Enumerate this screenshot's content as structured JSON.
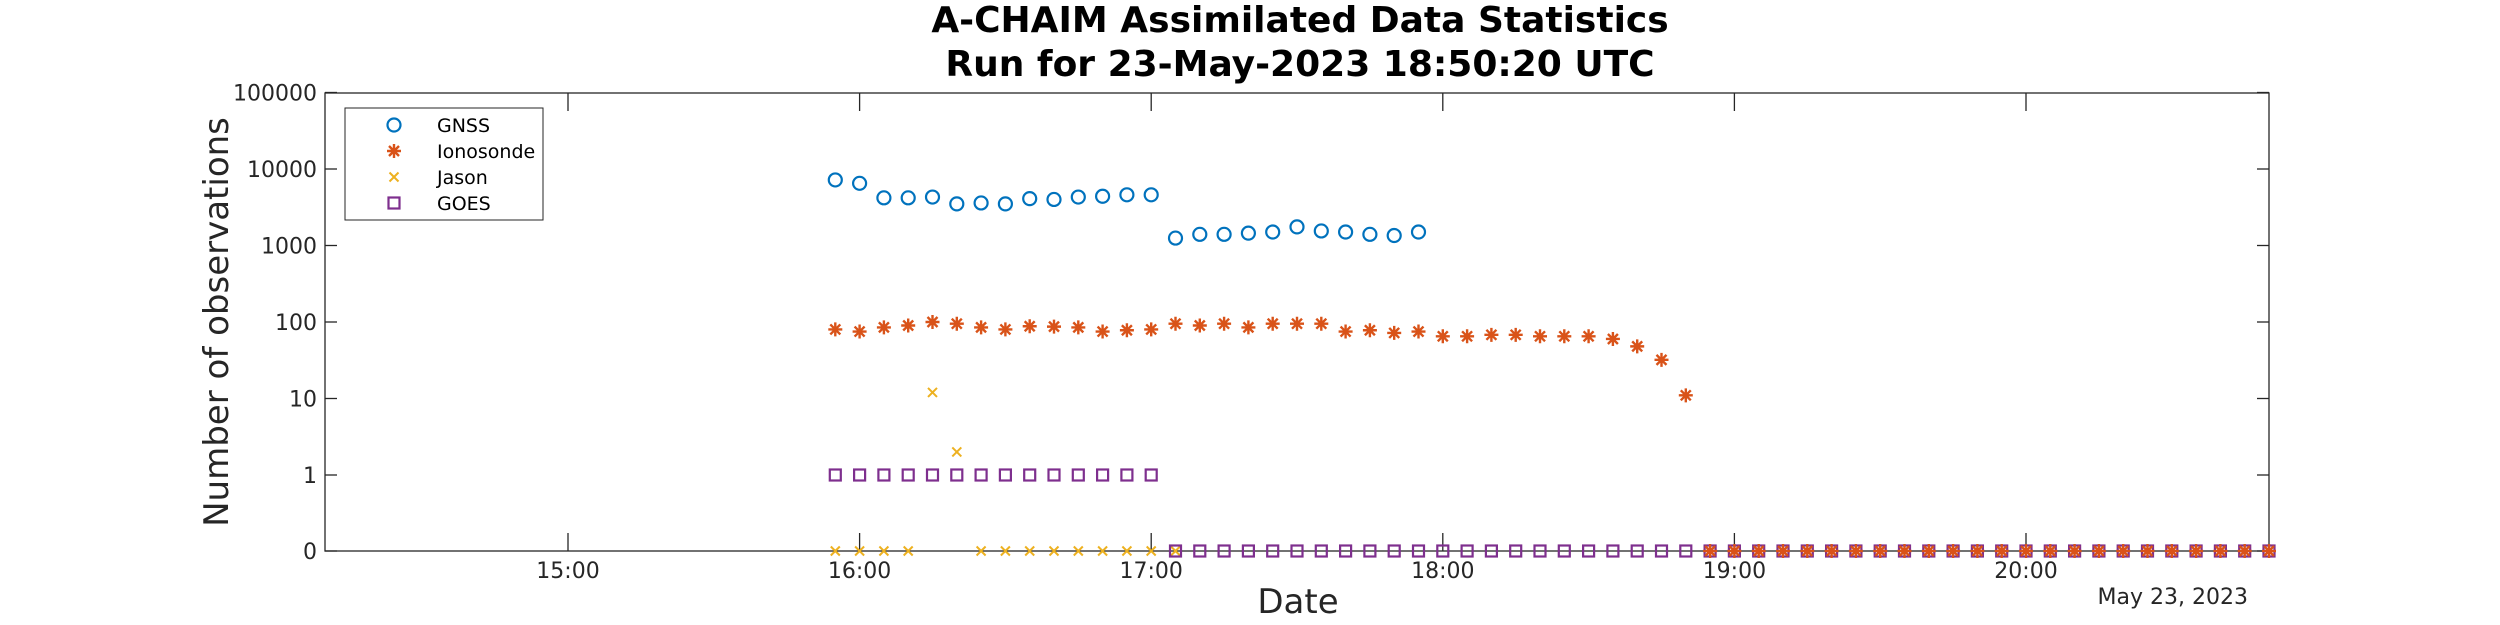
{
  "chart_data": {
    "type": "scatter",
    "title": [
      "A-CHAIM Assimilated Data Statistics",
      "Run for 23-May-2023 18:50:20 UTC"
    ],
    "xlabel": "Date",
    "ylabel": "Number of observations",
    "x_secondary_label": "May 23, 2023",
    "y_scale": "log (0 plotted at bottom)",
    "ylim": [
      0,
      100000
    ],
    "xlim": [
      "14:10",
      "20:50"
    ],
    "y_ticks": [
      "0",
      "1",
      "10",
      "100",
      "1000",
      "10000",
      "100000"
    ],
    "x_ticks": [
      "15:00",
      "16:00",
      "17:00",
      "18:00",
      "19:00",
      "20:00"
    ],
    "legend_position": "top-left",
    "grid": false,
    "series": [
      {
        "name": "GNSS",
        "marker": "circle",
        "color": "#0072BD",
        "x": [
          "15:55",
          "16:00",
          "16:05",
          "16:10",
          "16:15",
          "16:20",
          "16:25",
          "16:30",
          "16:35",
          "16:40",
          "16:45",
          "16:50",
          "16:55",
          "17:00",
          "17:05",
          "17:10",
          "17:15",
          "17:20",
          "17:25",
          "17:30",
          "17:35",
          "17:40",
          "17:45",
          "17:50",
          "17:55"
        ],
        "y": [
          7200,
          6500,
          4200,
          4200,
          4300,
          3500,
          3600,
          3500,
          4100,
          4000,
          4300,
          4400,
          4600,
          4600,
          1250,
          1400,
          1400,
          1450,
          1500,
          1750,
          1550,
          1500,
          1400,
          1350,
          1500
        ]
      },
      {
        "name": "Ionosonde",
        "marker": "asterisk",
        "color": "#D95319",
        "x": [
          "15:55",
          "16:00",
          "16:05",
          "16:10",
          "16:15",
          "16:20",
          "16:25",
          "16:30",
          "16:35",
          "16:40",
          "16:45",
          "16:50",
          "16:55",
          "17:00",
          "17:05",
          "17:10",
          "17:15",
          "17:20",
          "17:25",
          "17:30",
          "17:35",
          "17:40",
          "17:45",
          "17:50",
          "17:55",
          "18:00",
          "18:05",
          "18:10",
          "18:15",
          "18:20",
          "18:25",
          "18:30",
          "18:35",
          "18:40",
          "18:45",
          "18:50"
        ],
        "y": [
          80,
          75,
          85,
          90,
          100,
          95,
          85,
          80,
          88,
          87,
          85,
          75,
          78,
          80,
          95,
          90,
          95,
          85,
          95,
          95,
          95,
          75,
          78,
          72,
          75,
          65,
          65,
          68,
          68,
          65,
          65,
          65,
          60,
          48,
          32,
          11
        ]
      },
      {
        "name": "Jason",
        "marker": "x",
        "color": "#EDB120",
        "x": [
          "15:55",
          "16:00",
          "16:05",
          "16:10",
          "16:15",
          "16:20",
          "16:25",
          "16:30",
          "16:35",
          "16:40",
          "16:45",
          "16:50",
          "16:55",
          "17:00",
          "17:05"
        ],
        "y": [
          0,
          0,
          0,
          0,
          12,
          2,
          0,
          0,
          0,
          0,
          0,
          0,
          0,
          0,
          0
        ]
      },
      {
        "name": "GOES",
        "marker": "square",
        "color": "#7E2F8E",
        "x": [
          "15:55",
          "16:00",
          "16:05",
          "16:10",
          "16:15",
          "16:20",
          "16:25",
          "16:30",
          "16:35",
          "16:40",
          "16:45",
          "16:50",
          "16:55",
          "17:00",
          "17:05",
          "17:10",
          "17:15",
          "17:20",
          "17:25",
          "17:30",
          "17:35",
          "17:40",
          "17:45",
          "17:50",
          "17:55",
          "18:00",
          "18:05",
          "18:10",
          "18:15",
          "18:20",
          "18:25",
          "18:30",
          "18:35",
          "18:40",
          "18:45",
          "18:50",
          "18:55",
          "19:00",
          "19:05",
          "19:10",
          "19:15",
          "19:20",
          "19:25",
          "19:30",
          "19:35",
          "19:40",
          "19:45",
          "19:50",
          "19:55",
          "20:00",
          "20:05",
          "20:10",
          "20:15",
          "20:20",
          "20:25",
          "20:30",
          "20:35",
          "20:40",
          "20:45",
          "20:50"
        ],
        "y": [
          1,
          1,
          1,
          1,
          1,
          1,
          1,
          1,
          1,
          1,
          1,
          1,
          1,
          1,
          0,
          0,
          0,
          0,
          0,
          0,
          0,
          0,
          0,
          0,
          0,
          0,
          0,
          0,
          0,
          0,
          0,
          0,
          0,
          0,
          0,
          0,
          0,
          0,
          0,
          0,
          0,
          0,
          0,
          0,
          0,
          0,
          0,
          0,
          0,
          0,
          0,
          0,
          0,
          0,
          0,
          0,
          0,
          0,
          0,
          0
        ]
      },
      {
        "name": "",
        "marker": "asterisk",
        "color": "#D95319",
        "x": [
          "18:55",
          "19:00",
          "19:05",
          "19:10",
          "19:15",
          "19:20",
          "19:25",
          "19:30",
          "19:35",
          "19:40",
          "19:45",
          "19:50",
          "19:55",
          "20:00",
          "20:05",
          "20:10",
          "20:15",
          "20:20",
          "20:25",
          "20:30",
          "20:35",
          "20:40",
          "20:45",
          "20:50"
        ],
        "y": [
          0,
          0,
          0,
          0,
          0,
          0,
          0,
          0,
          0,
          0,
          0,
          0,
          0,
          0,
          0,
          0,
          0,
          0,
          0,
          0,
          0,
          0,
          0,
          0
        ]
      }
    ]
  }
}
